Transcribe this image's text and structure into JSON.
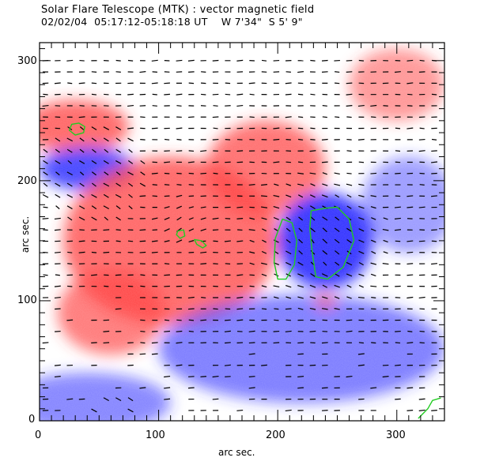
{
  "header": {
    "title_line1": "Solar Flare Telescope (MTK) : vector magnetic field",
    "title_line2": "02/02/04  05:17:12-05:18:18 UT    W 7'34\"  S 5' 9\""
  },
  "axes": {
    "xlabel": "arc sec.",
    "ylabel": "arc sec.",
    "xlim": [
      0,
      340
    ],
    "ylim": [
      0,
      315
    ],
    "x_ticks": [
      "0",
      "100",
      "200",
      "300"
    ],
    "y_ticks": [
      "0",
      "100",
      "200",
      "300"
    ],
    "x_tick_values": [
      0,
      100,
      200,
      300
    ],
    "y_tick_values": [
      0,
      100,
      200,
      300
    ]
  },
  "colors": {
    "positive_polarity": "#ff3b3b",
    "negative_polarity": "#2f2fff",
    "contour": "#22cc22",
    "vector": "#000000"
  },
  "chart_data": {
    "type": "heatmap",
    "title": "Solar Flare Telescope (MTK) : vector magnetic field",
    "subtitle": "02/02/04  05:17:12-05:18:18 UT    W 7'34\"  S 5' 9\"",
    "xlabel": "arc sec.",
    "ylabel": "arc sec.",
    "xlim": [
      0,
      340
    ],
    "ylim": [
      0,
      315
    ],
    "grid": false,
    "regions": [
      {
        "polarity": "positive",
        "name": "red-upper-left",
        "center": [
          30,
          245
        ],
        "radius": [
          45,
          22
        ],
        "strength": 0.8
      },
      {
        "polarity": "negative",
        "name": "blue-left",
        "center": [
          40,
          210
        ],
        "radius": [
          40,
          18
        ],
        "strength": 0.9
      },
      {
        "polarity": "positive",
        "name": "red-central",
        "center": [
          110,
          150
        ],
        "radius": [
          90,
          70
        ],
        "strength": 0.8
      },
      {
        "polarity": "positive",
        "name": "red-upper-mid",
        "center": [
          190,
          210
        ],
        "radius": [
          50,
          40
        ],
        "strength": 0.75
      },
      {
        "polarity": "positive",
        "name": "red-left-lower",
        "center": [
          60,
          90
        ],
        "radius": [
          45,
          35
        ],
        "strength": 0.7
      },
      {
        "polarity": "negative",
        "name": "blue-sunspot",
        "center": [
          240,
          150
        ],
        "radius": [
          40,
          40
        ],
        "strength": 1.0
      },
      {
        "polarity": "negative",
        "name": "blue-lower-band",
        "center": [
          220,
          60
        ],
        "radius": [
          120,
          45
        ],
        "strength": 0.65
      },
      {
        "polarity": "negative",
        "name": "blue-bottom-left",
        "center": [
          40,
          15
        ],
        "radius": [
          70,
          25
        ],
        "strength": 0.6
      },
      {
        "polarity": "positive",
        "name": "red-upper-right",
        "center": [
          300,
          280
        ],
        "radius": [
          40,
          30
        ],
        "strength": 0.55
      },
      {
        "polarity": "negative",
        "name": "blue-right",
        "center": [
          310,
          180
        ],
        "radius": [
          40,
          40
        ],
        "strength": 0.5
      },
      {
        "polarity": "positive",
        "name": "red-small-spot",
        "center": [
          240,
          100
        ],
        "radius": [
          8,
          6
        ],
        "strength": 0.7
      }
    ],
    "contours": [
      {
        "name": "contour-upper-left",
        "points": [
          [
            27,
            247
          ],
          [
            33,
            248
          ],
          [
            38,
            245
          ],
          [
            37,
            240
          ],
          [
            30,
            238
          ],
          [
            25,
            242
          ]
        ]
      },
      {
        "name": "contour-center-small",
        "points": [
          [
            116,
            158
          ],
          [
            121,
            159
          ],
          [
            122,
            154
          ],
          [
            118,
            152
          ],
          [
            115,
            155
          ]
        ]
      },
      {
        "name": "contour-center-hook",
        "points": [
          [
            130,
            151
          ],
          [
            136,
            150
          ],
          [
            140,
            146
          ],
          [
            137,
            144
          ],
          [
            132,
            147
          ]
        ]
      },
      {
        "name": "contour-sunspot-left",
        "points": [
          [
            204,
            168
          ],
          [
            212,
            165
          ],
          [
            216,
            150
          ],
          [
            214,
            130
          ],
          [
            207,
            118
          ],
          [
            200,
            118
          ],
          [
            197,
            132
          ],
          [
            198,
            152
          ]
        ]
      },
      {
        "name": "contour-sunspot-right",
        "points": [
          [
            228,
            175
          ],
          [
            240,
            177
          ],
          [
            250,
            178
          ],
          [
            260,
            168
          ],
          [
            264,
            150
          ],
          [
            255,
            128
          ],
          [
            242,
            118
          ],
          [
            232,
            120
          ],
          [
            229,
            140
          ],
          [
            227,
            160
          ]
        ]
      },
      {
        "name": "contour-bottom-right",
        "points": [
          [
            318,
            2
          ],
          [
            326,
            10
          ],
          [
            330,
            17
          ],
          [
            337,
            19
          ]
        ]
      }
    ]
  }
}
